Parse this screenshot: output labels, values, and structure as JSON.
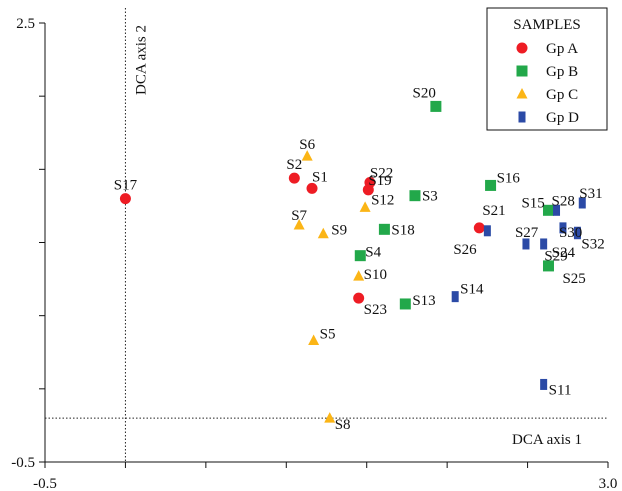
{
  "chart_data": {
    "type": "scatter",
    "title": "",
    "xlim": [
      -0.5,
      3.0
    ],
    "ylim": [
      -0.5,
      2.5
    ],
    "x_tick_labels": [
      {
        "value": -0.5,
        "text": "-0.5"
      },
      {
        "value": 3.0,
        "text": "3.0"
      }
    ],
    "y_tick_labels": [
      {
        "value": 2.5,
        "text": "2.5"
      },
      {
        "value": -0.5,
        "text": "-0.5"
      }
    ],
    "x_minor_ticks": [
      -0.5,
      0.0,
      0.5,
      1.0,
      1.5,
      2.0,
      2.5,
      3.0
    ],
    "y_minor_ticks": [
      -0.5,
      0.0,
      0.5,
      1.0,
      1.5,
      2.0,
      2.5
    ],
    "reference_lines": {
      "vertical_x": 0.0,
      "vertical_label": "DCA axis 2",
      "horizontal_y": -0.2,
      "horizontal_label": "DCA axis 1"
    },
    "legend": {
      "title": "SAMPLES",
      "position": "top-right"
    },
    "series": [
      {
        "name": "Gp A",
        "marker": "circle",
        "color": "#ee1c24",
        "points": [
          {
            "label": "S17",
            "x": 0.0,
            "y": 1.3
          },
          {
            "label": "S2",
            "x": 1.05,
            "y": 1.44
          },
          {
            "label": "S1",
            "x": 1.16,
            "y": 1.37
          },
          {
            "label": "S22",
            "x": 1.52,
            "y": 1.41
          },
          {
            "label": "S19",
            "x": 1.51,
            "y": 1.36
          },
          {
            "label": "S21",
            "x": 2.2,
            "y": 1.1
          },
          {
            "label": "S23",
            "x": 1.45,
            "y": 0.62
          }
        ]
      },
      {
        "name": "Gp B",
        "marker": "square",
        "color": "#22a84a",
        "points": [
          {
            "label": "S20",
            "x": 1.93,
            "y": 1.93
          },
          {
            "label": "S16",
            "x": 2.27,
            "y": 1.39
          },
          {
            "label": "S3",
            "x": 1.8,
            "y": 1.32
          },
          {
            "label": "S18",
            "x": 1.61,
            "y": 1.09
          },
          {
            "label": "S4",
            "x": 1.46,
            "y": 0.91
          },
          {
            "label": "S13",
            "x": 1.74,
            "y": 0.58
          },
          {
            "label": "S15",
            "x": 2.63,
            "y": 1.22
          },
          {
            "label": "S25",
            "x": 2.63,
            "y": 0.84
          }
        ]
      },
      {
        "name": "Gp C",
        "marker": "triangle",
        "color": "#fbb516",
        "points": [
          {
            "label": "S6",
            "x": 1.13,
            "y": 1.59
          },
          {
            "label": "S7",
            "x": 1.08,
            "y": 1.12
          },
          {
            "label": "S9",
            "x": 1.23,
            "y": 1.06
          },
          {
            "label": "S12",
            "x": 1.49,
            "y": 1.24
          },
          {
            "label": "S10",
            "x": 1.45,
            "y": 0.77
          },
          {
            "label": "S5",
            "x": 1.17,
            "y": 0.33
          },
          {
            "label": "S8",
            "x": 1.27,
            "y": -0.2
          }
        ]
      },
      {
        "name": "Gp D",
        "marker": "rect",
        "color": "#2b4aa6",
        "points": [
          {
            "label": "S26",
            "x": 2.25,
            "y": 1.08
          },
          {
            "label": "S14",
            "x": 2.05,
            "y": 0.63
          },
          {
            "label": "S27",
            "x": 2.49,
            "y": 0.99
          },
          {
            "label": "S24",
            "x": 2.6,
            "y": 0.99
          },
          {
            "label": "S28",
            "x": 2.68,
            "y": 1.22
          },
          {
            "label": "S31",
            "x": 2.84,
            "y": 1.27
          },
          {
            "label": "S30",
            "x": 2.72,
            "y": 1.1
          },
          {
            "label": "S29",
            "x": 2.81,
            "y": 1.07
          },
          {
            "label": "S32",
            "x": 2.81,
            "y": 1.06
          },
          {
            "label": "S11",
            "x": 2.6,
            "y": 0.03
          }
        ]
      }
    ]
  }
}
